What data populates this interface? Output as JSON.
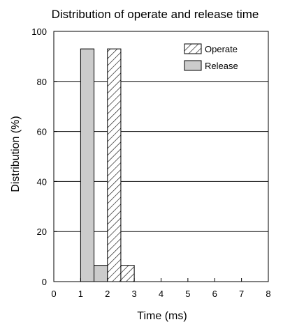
{
  "chart_data": {
    "type": "bar",
    "title": "Distribution of operate and release time",
    "xlabel": "Time (ms)",
    "ylabel": "Distribution (%)",
    "xlim": [
      0,
      8
    ],
    "ylim": [
      0,
      100
    ],
    "x_ticks": [
      "0",
      "1",
      "2",
      "3",
      "4",
      "5",
      "6",
      "7",
      "8"
    ],
    "y_ticks": [
      "0",
      "20",
      "40",
      "60",
      "80",
      "100"
    ],
    "grid": "horizontal",
    "legend_position": "top-right",
    "bin_width": 0.5,
    "series": [
      {
        "name": "Operate",
        "fill": "hatched",
        "bars": [
          {
            "x_start": 2.0,
            "x_end": 2.5,
            "value": 93
          },
          {
            "x_start": 2.5,
            "x_end": 3.0,
            "value": 6.5
          }
        ]
      },
      {
        "name": "Release",
        "fill": "#cccccc",
        "bars": [
          {
            "x_start": 1.0,
            "x_end": 1.5,
            "value": 93
          },
          {
            "x_start": 1.5,
            "x_end": 2.0,
            "value": 6.5
          }
        ]
      }
    ]
  }
}
